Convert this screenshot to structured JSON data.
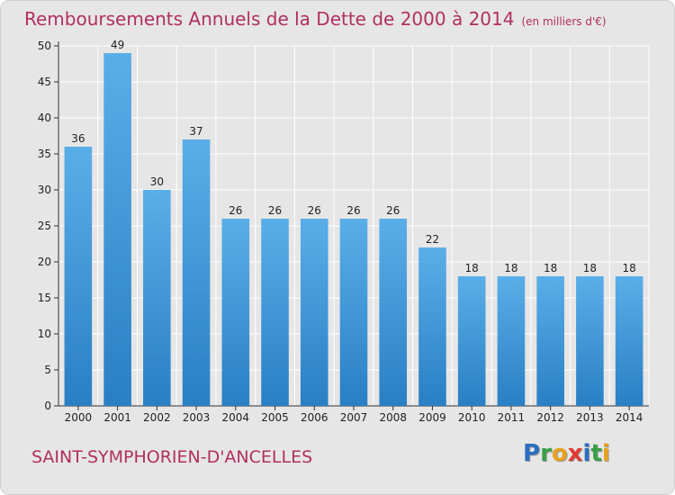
{
  "chart_data": {
    "type": "bar",
    "title": "Remboursements Annuels de la Dette de 2000 à 2014",
    "unit_note": "(en milliers d'€)",
    "categories": [
      "2000",
      "2001",
      "2002",
      "2003",
      "2004",
      "2005",
      "2006",
      "2007",
      "2008",
      "2009",
      "2010",
      "2011",
      "2012",
      "2013",
      "2014"
    ],
    "values": [
      36,
      49,
      30,
      37,
      26,
      26,
      26,
      26,
      26,
      22,
      18,
      18,
      18,
      18,
      18
    ],
    "ylim": [
      0,
      50
    ],
    "yticks": [
      0,
      5,
      10,
      15,
      20,
      25,
      30,
      35,
      40,
      45,
      50
    ],
    "xlabel": "",
    "ylabel": "",
    "grid": true,
    "bar_color_top": "#5aaee8",
    "bar_color_bottom": "#2a7fc4"
  },
  "footer": {
    "city": "SAINT-SYMPHORIEN-D'ANCELLES",
    "logo_letters": [
      {
        "ch": "P",
        "color": "#2b6fbf"
      },
      {
        "ch": "r",
        "color": "#3aa048"
      },
      {
        "ch": "o",
        "color": "#e8a020"
      },
      {
        "ch": "x",
        "color": "#e03a30"
      },
      {
        "ch": "i",
        "color": "#2b6fbf"
      },
      {
        "ch": "t",
        "color": "#3aa048"
      },
      {
        "ch": "i",
        "color": "#e8a020"
      }
    ]
  },
  "colors": {
    "title": "#b03060",
    "plot_bg": "#e6e6e6",
    "grid": "#ffffff"
  }
}
